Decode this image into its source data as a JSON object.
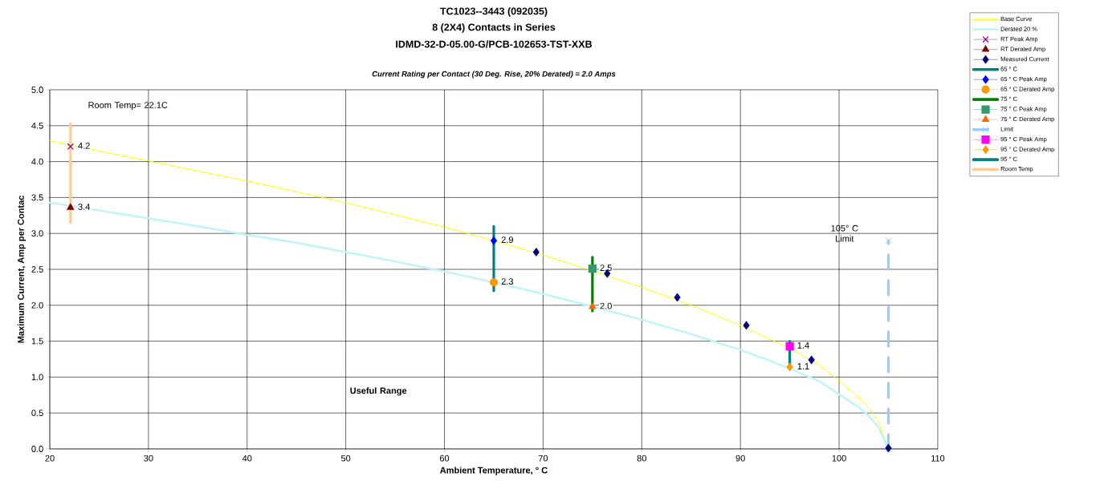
{
  "chart_data": {
    "type": "line",
    "title": [
      "TC1023--3443 (092035)",
      "8 (2X4) Contacts in Series",
      "IDMD-32-D-05.00-G/PCB-102653-TST-XXB"
    ],
    "subtitle": "Current Rating per Contact (30 Deg. Rise, 20% Derated)  = 2.0 Amps",
    "xlabel": "Ambient Temperature,  ° C",
    "ylabel": "Maximum Current, Amp per Contac",
    "xlim": [
      20,
      110
    ],
    "xticks": [
      20,
      30,
      40,
      50,
      60,
      70,
      80,
      90,
      100,
      110
    ],
    "ylim": [
      0,
      5
    ],
    "yticks": [
      {
        "value": 0,
        "label": "0.0"
      },
      0.5,
      {
        "value": 1,
        "label": "1.0"
      },
      1.5,
      {
        "value": 2,
        "label": "2.0"
      },
      2.5,
      {
        "value": 3,
        "label": "3.0"
      },
      3.5,
      {
        "value": 4,
        "label": "4.0"
      },
      4.5,
      {
        "value": 5,
        "label": "5.0"
      }
    ],
    "grid": true,
    "legend": "top right",
    "annotations": [
      "Room Temp= 22.1C",
      "Useful Range",
      "105° C Limit"
    ],
    "series": [
      {
        "name": "Base Curve",
        "type": "line",
        "color": "#ffff00",
        "marker": "none",
        "x": [
          20,
          25,
          30,
          35,
          40,
          45,
          50,
          55,
          60,
          65,
          70,
          75,
          80,
          85,
          90,
          95,
          98,
          100,
          102,
          103,
          104,
          105
        ],
        "values": [
          4.29,
          4.15,
          4.01,
          3.87,
          3.73,
          3.58,
          3.43,
          3.26,
          3.09,
          2.9,
          2.7,
          2.48,
          2.25,
          2.0,
          1.72,
          1.4,
          1.17,
          0.95,
          0.72,
          0.57,
          0.38,
          0.0
        ]
      },
      {
        "name": "Derated 20 %",
        "type": "line",
        "color": "#c0f4fa",
        "marker": "none",
        "x": [
          20,
          25,
          30,
          35,
          40,
          45,
          50,
          55,
          60,
          65,
          70,
          75,
          80,
          85,
          90,
          95,
          98,
          100,
          102,
          103,
          104,
          105
        ],
        "values": [
          3.43,
          3.32,
          3.21,
          3.1,
          2.98,
          2.87,
          2.74,
          2.61,
          2.47,
          2.32,
          2.16,
          1.98,
          1.8,
          1.6,
          1.38,
          1.12,
          0.94,
          0.76,
          0.58,
          0.46,
          0.3,
          0.0
        ]
      },
      {
        "name": "RT Peak Amp",
        "type": "scatter",
        "color": "#800080",
        "marker": "cross",
        "x": [
          22.1
        ],
        "values": [
          4.21
        ],
        "value_labels": [
          "4.2"
        ]
      },
      {
        "name": "RT Derated Amp",
        "type": "scatter",
        "color": "#800000",
        "marker": "triangle",
        "x": [
          22.1
        ],
        "values": [
          3.36
        ],
        "value_labels": [
          "3.4"
        ]
      },
      {
        "name": "Measured Current",
        "type": "scatter",
        "color": "#000080",
        "marker": "diamond",
        "x": [
          69.3,
          76.5,
          83.6,
          90.6,
          97.2,
          105
        ],
        "values": [
          2.74,
          2.44,
          2.11,
          1.72,
          1.24,
          0.01
        ]
      },
      {
        "name": "65 ° C",
        "type": "line",
        "color": "#008080",
        "marker": "none",
        "x": [
          65,
          65
        ],
        "values": [
          2.2,
          3.1
        ]
      },
      {
        "name": "65 ° C Peak Amp",
        "type": "scatter",
        "color": "#0000ff",
        "marker": "diamond",
        "x": [
          65
        ],
        "values": [
          2.9
        ],
        "value_labels": [
          "2.9"
        ]
      },
      {
        "name": "65 ° C Derated Amp",
        "type": "scatter",
        "color": "#ff9900",
        "marker": "circle",
        "x": [
          65
        ],
        "values": [
          2.32
        ],
        "value_labels": [
          "2.3"
        ]
      },
      {
        "name": "75 ° C",
        "type": "line",
        "color": "#008000",
        "marker": "none",
        "x": [
          75,
          75
        ],
        "values": [
          1.92,
          2.67
        ]
      },
      {
        "name": "75 ° C Peak Amp",
        "type": "scatter",
        "color": "#339966",
        "marker": "square",
        "x": [
          75
        ],
        "values": [
          2.51
        ],
        "value_labels": [
          "2.5"
        ]
      },
      {
        "name": "75 ° C Derated Amp",
        "type": "scatter",
        "color": "#ff6600",
        "marker": "triangle",
        "x": [
          75
        ],
        "values": [
          1.98
        ],
        "value_labels": [
          "2.0"
        ]
      },
      {
        "name": "Limit",
        "type": "line",
        "color": "#99ccff",
        "marker": "cross",
        "line_style": "dashed",
        "x": [
          105,
          105
        ],
        "values": [
          0.0,
          2.9
        ]
      },
      {
        "name": "95 ° C Peak Amp",
        "type": "scatter",
        "color": "#ff00ff",
        "marker": "square",
        "x": [
          95
        ],
        "values": [
          1.43
        ],
        "value_labels": [
          "1.4"
        ]
      },
      {
        "name": "95 ° C Derated Amp",
        "type": "scatter",
        "color": "#ff9900",
        "marker": "diamond",
        "x": [
          95
        ],
        "values": [
          1.14
        ],
        "value_labels": [
          "1.1"
        ]
      },
      {
        "name": "95 ° C",
        "type": "line",
        "color": "#008080",
        "marker": "none",
        "x": [
          95,
          95
        ],
        "values": [
          1.14,
          1.5
        ]
      },
      {
        "name": "Room Temp",
        "type": "line",
        "color": "#ffcc99",
        "marker": "none",
        "x": [
          22.1,
          22.1
        ],
        "values": [
          3.15,
          4.53
        ]
      }
    ]
  }
}
